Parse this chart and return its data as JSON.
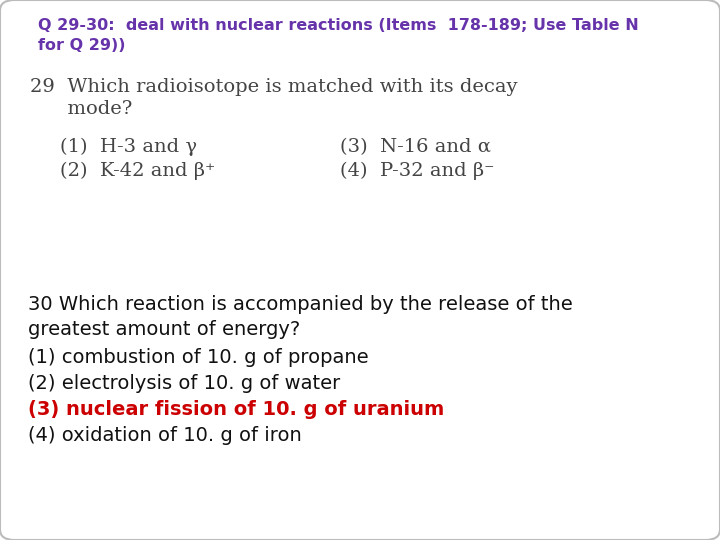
{
  "bg_color": "#ffffff",
  "border_color": "#bbbbbb",
  "header_line1": "Q 29-30:  deal with nuclear reactions (Items  178-189; Use Table N",
  "header_line2": "for Q 29))",
  "header_color": "#6633aa",
  "header_fs": 11.5,
  "q29_line1": "29  Which radioisotope is matched with its decay",
  "q29_line2": "      mode?",
  "q29_opt1l": "(1)  H-3 and γ",
  "q29_opt2l": "(2)  K-42 and β⁺",
  "q29_opt1r": "(3)  N-16 and α",
  "q29_opt2r": "(4)  P-32 and β⁻",
  "q29_color": "#444444",
  "q29_fs": 14,
  "q30_line1": "30 Which reaction is accompanied by the release of the",
  "q30_line2": "greatest amount of energy?",
  "q30_opt1": "(1) combustion of 10. g of propane",
  "q30_opt2": "(2) electrolysis of 10. g of water",
  "q30_opt3": "(3) nuclear fission of 10. g of uranium",
  "q30_opt4": "(4) oxidation of 10. g of iron",
  "q30_black": "#111111",
  "q30_red": "#cc0000",
  "q30_fs": 14
}
